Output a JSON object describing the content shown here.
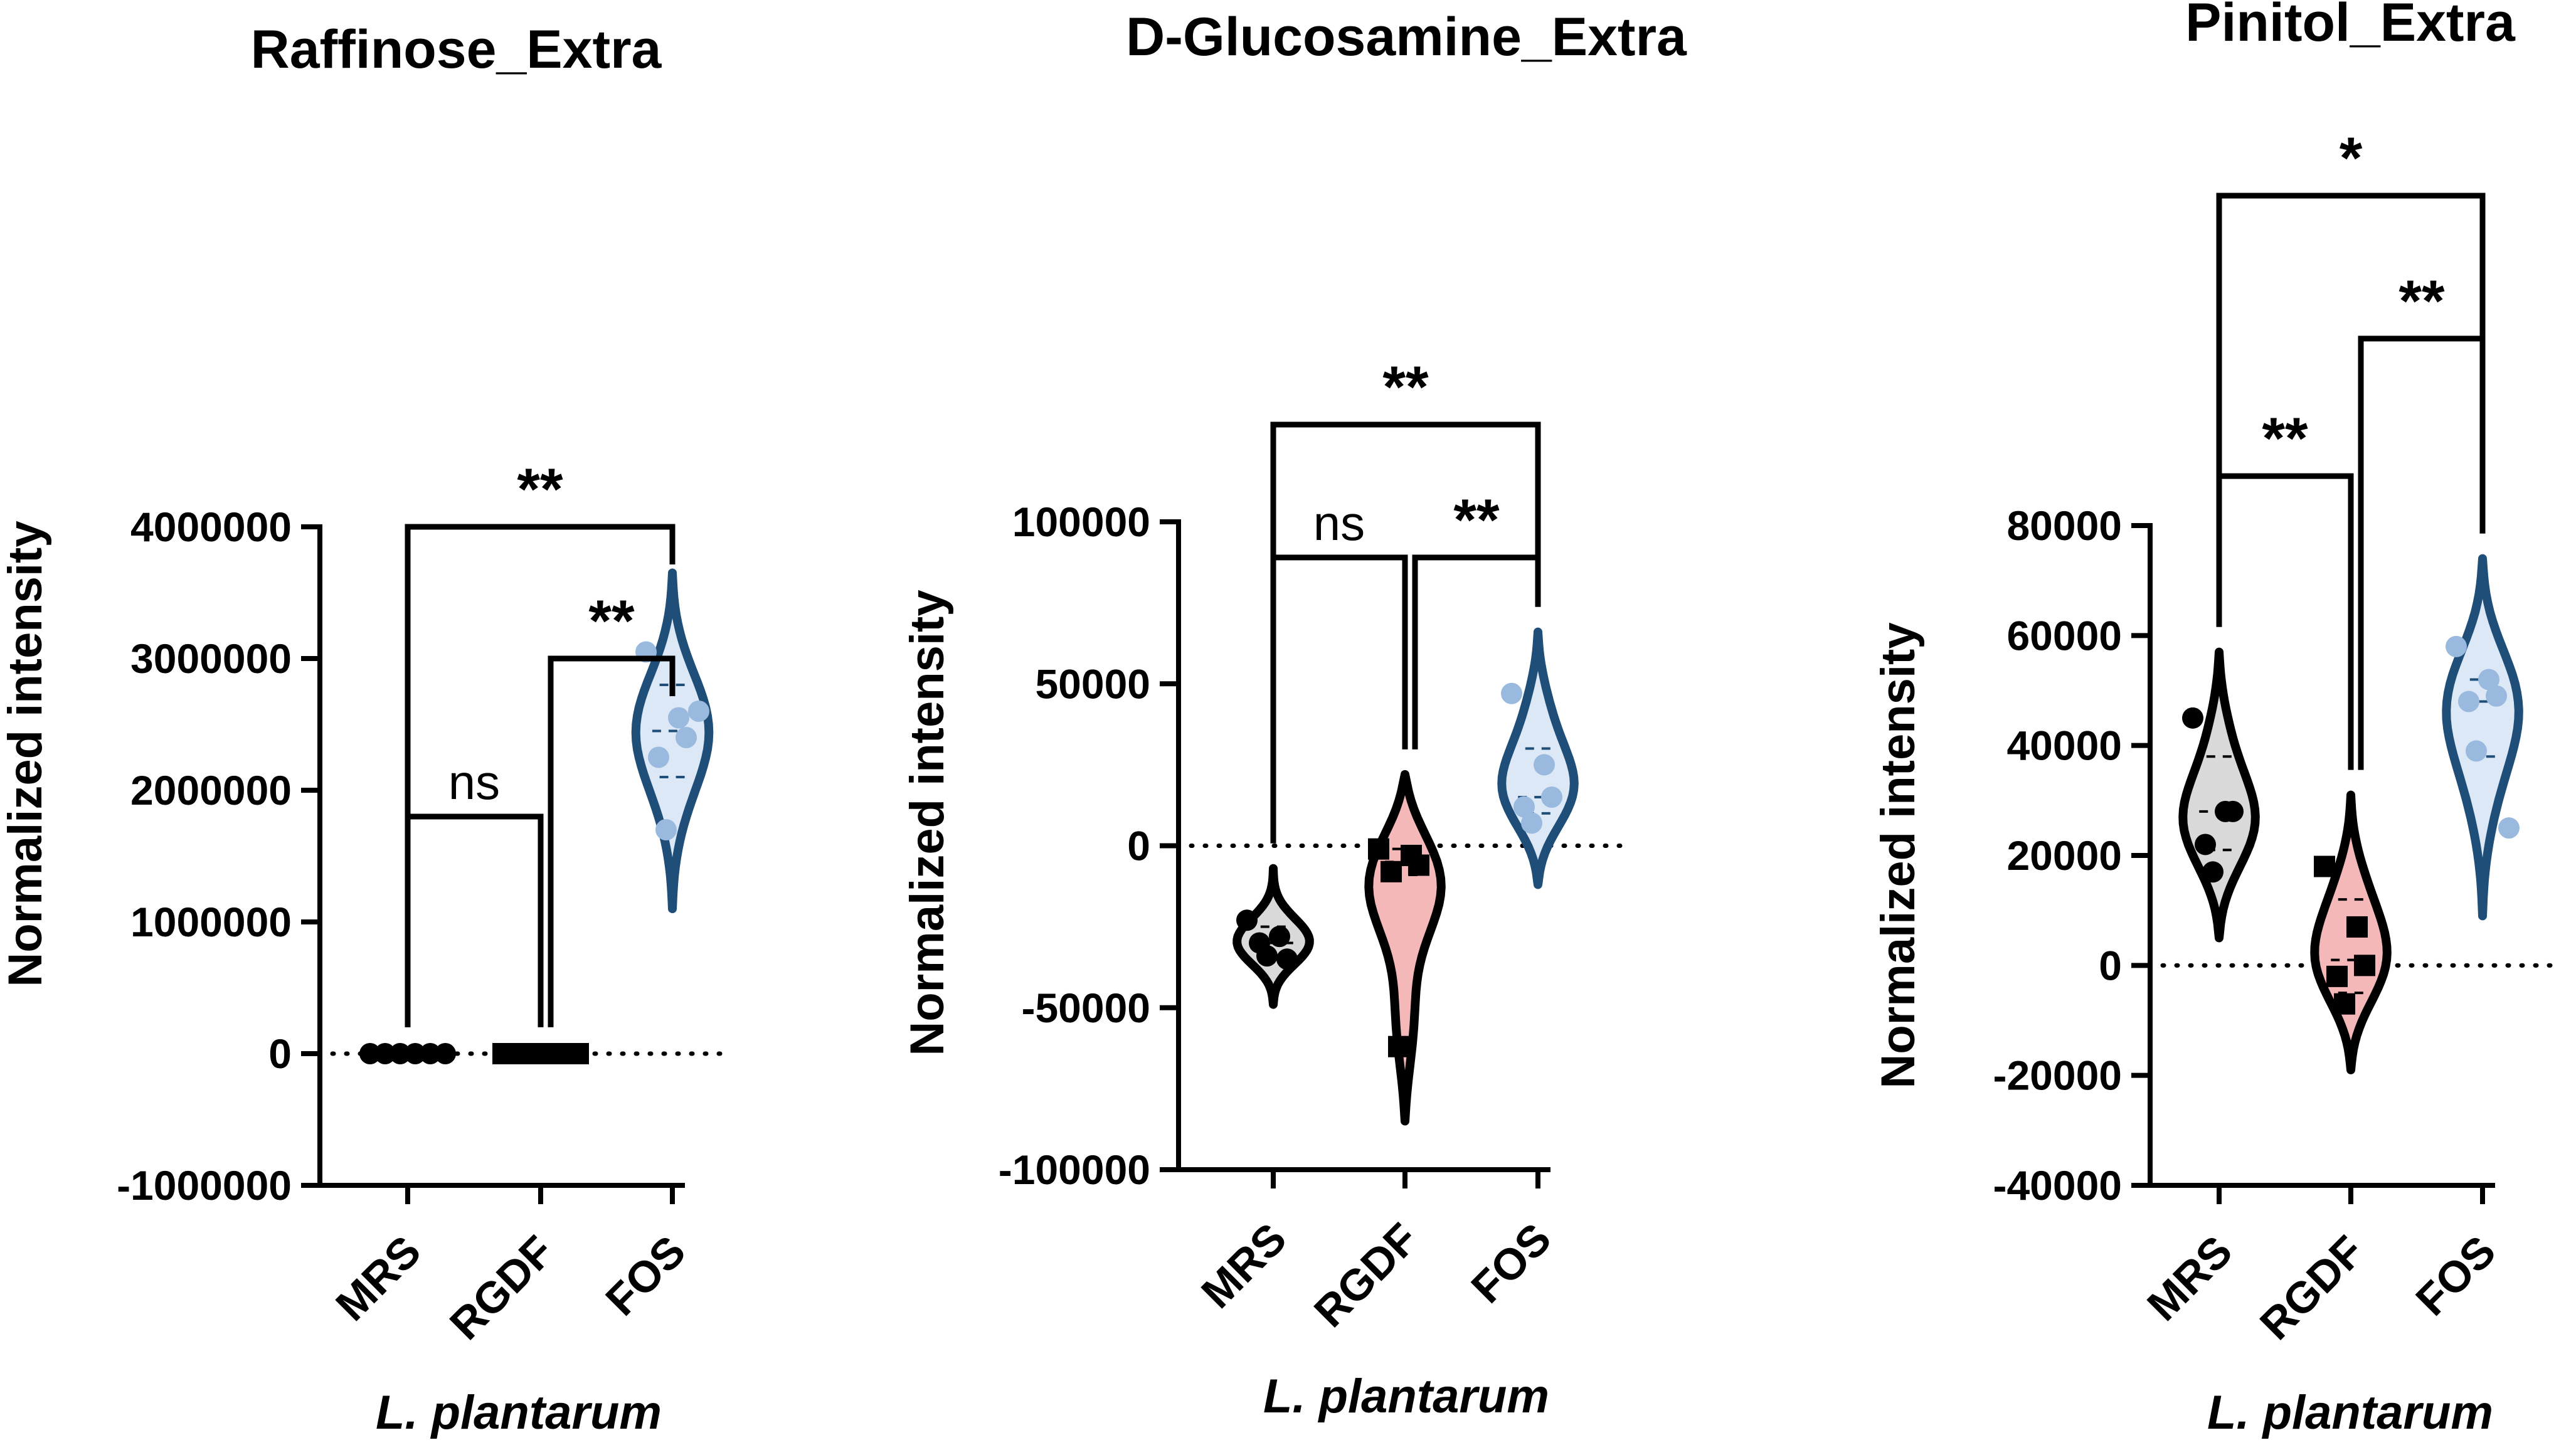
{
  "chart_data": [
    {
      "type": "violin",
      "title": "Raffinose_Extra",
      "ylabel": "Normalized intensity",
      "xlabel": "L. plantarum",
      "categories": [
        "MRS",
        "RGDF",
        "FOS"
      ],
      "ylim": [
        -1000000,
        4000000
      ],
      "yticks": [
        -1000000,
        0,
        1000000,
        2000000,
        3000000,
        4000000
      ],
      "ytick_labels": [
        "-1000000",
        "0",
        "1000000",
        "2000000",
        "3000000",
        "4000000"
      ],
      "zero_line": true,
      "series": [
        {
          "values": [
            0,
            0,
            0,
            0,
            0,
            0
          ],
          "marker": "circle",
          "color": "#000000",
          "fill": "#000000",
          "violin": [
            -10000,
            10000
          ]
        },
        {
          "values": [
            0,
            0,
            0,
            0,
            0,
            0
          ],
          "marker": "square",
          "color": "#000000",
          "fill": "#000000",
          "violin": [
            -10000,
            10000
          ]
        },
        {
          "values": [
            3050000,
            2550000,
            2400000,
            2250000,
            1700000,
            2600000
          ],
          "marker": "circle",
          "color": "#1f4e79",
          "fill": "#dce8f6",
          "point_color": "#9ab9de",
          "violin": [
            1100000,
            3650000
          ],
          "median": 2450000,
          "quartiles": [
            2100000,
            2800000
          ]
        }
      ],
      "significance": [
        {
          "from": "MRS",
          "to": "FOS",
          "label": "**",
          "y": 4000000
        },
        {
          "from": "RGDF",
          "to": "FOS",
          "label": "**",
          "y": 3000000
        },
        {
          "from": "MRS",
          "to": "RGDF",
          "label": "ns",
          "y": 1800000
        }
      ]
    },
    {
      "type": "violin",
      "title": "D-Glucosamine_Extra",
      "ylabel": "Normalized intensity",
      "xlabel": "L. plantarum",
      "categories": [
        "MRS",
        "RGDF",
        "FOS"
      ],
      "ylim": [
        -100000,
        100000
      ],
      "yticks": [
        -100000,
        -50000,
        0,
        50000,
        100000
      ],
      "ytick_labels": [
        "-100000",
        "-50000",
        "0",
        "50000",
        "100000"
      ],
      "zero_line": true,
      "series": [
        {
          "values": [
            -23000,
            -28000,
            -35000,
            -30000,
            -34000
          ],
          "marker": "circle",
          "color": "#000000",
          "fill": "#d9d9d9",
          "violin": [
            -49000,
            -7000
          ],
          "median": -30000,
          "quartiles": [
            -35000,
            -25000
          ]
        },
        {
          "values": [
            -1000,
            -3000,
            -6000,
            -8000,
            -62000
          ],
          "marker": "square",
          "color": "#000000",
          "fill": "#f4b8b8",
          "violin": [
            -85000,
            22000
          ],
          "median": -5000,
          "quartiles": [
            -9000,
            -1000
          ]
        },
        {
          "values": [
            47000,
            25000,
            15000,
            12000,
            7000
          ],
          "marker": "circle",
          "color": "#1f4e79",
          "fill": "#dce8f6",
          "point_color": "#9ab9de",
          "violin": [
            -12000,
            66000
          ],
          "median": 15000,
          "quartiles": [
            10000,
            30000
          ]
        }
      ],
      "significance": [
        {
          "from": "MRS",
          "to": "FOS",
          "label": "**",
          "y": 130000
        },
        {
          "from": "MRS",
          "to": "RGDF",
          "label": "ns",
          "y": 89000
        },
        {
          "from": "RGDF",
          "to": "FOS",
          "label": "**",
          "y": 89000
        }
      ]
    },
    {
      "type": "violin",
      "title": "Pinitol_Extra",
      "ylabel": "Normalized intensity",
      "xlabel": "L. plantarum",
      "categories": [
        "MRS",
        "RGDF",
        "FOS"
      ],
      "ylim": [
        -40000,
        80000
      ],
      "yticks": [
        -40000,
        -20000,
        0,
        20000,
        40000,
        60000,
        80000
      ],
      "ytick_labels": [
        "-40000",
        "-20000",
        "0",
        "20000",
        "40000",
        "60000",
        "80000"
      ],
      "zero_line": true,
      "series": [
        {
          "values": [
            45000,
            28000,
            28000,
            22000,
            17000
          ],
          "marker": "circle",
          "color": "#000000",
          "fill": "#d9d9d9",
          "violin": [
            5000,
            57000
          ],
          "median": 28000,
          "quartiles": [
            21000,
            38000
          ]
        },
        {
          "values": [
            18000,
            7000,
            0,
            -2000,
            -7000
          ],
          "marker": "square",
          "color": "#000000",
          "fill": "#f4b8b8",
          "violin": [
            -19000,
            31000
          ],
          "median": 1000,
          "quartiles": [
            -5000,
            12000
          ]
        },
        {
          "values": [
            58000,
            52000,
            49000,
            48000,
            39000,
            25000
          ],
          "marker": "circle",
          "color": "#1f4e79",
          "fill": "#dce8f6",
          "point_color": "#9ab9de",
          "violin": [
            9000,
            74000
          ],
          "median": 48000,
          "quartiles": [
            38000,
            52000
          ]
        }
      ],
      "significance": [
        {
          "from": "MRS",
          "to": "FOS",
          "label": "*",
          "y": 140000
        },
        {
          "from": "RGDF",
          "to": "FOS",
          "label": "**",
          "y": 114000
        },
        {
          "from": "MRS",
          "to": "RGDF",
          "label": "**",
          "y": 89000
        }
      ]
    }
  ]
}
